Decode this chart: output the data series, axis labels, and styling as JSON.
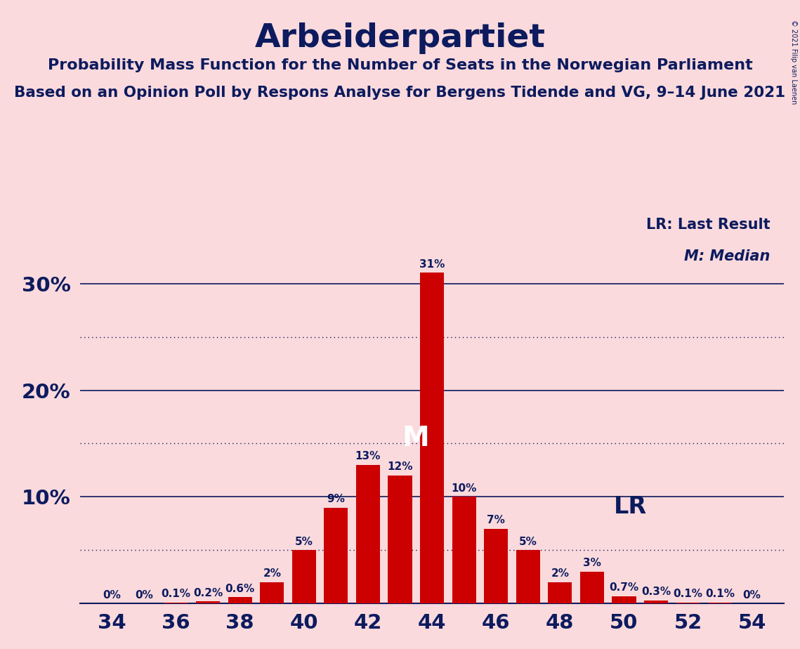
{
  "title": "Arbeiderpartiet",
  "subtitle1": "Probability Mass Function for the Number of Seats in the Norwegian Parliament",
  "subtitle2": "Based on an Opinion Poll by Respons Analyse for Bergens Tidende and VG, 9–14 June 2021",
  "copyright": "© 2021 Filip van Laenen",
  "seats": [
    34,
    35,
    36,
    37,
    38,
    39,
    40,
    41,
    42,
    43,
    44,
    45,
    46,
    47,
    48,
    49,
    50,
    51,
    52,
    53,
    54
  ],
  "values": [
    0.0,
    0.0,
    0.001,
    0.002,
    0.006,
    0.02,
    0.05,
    0.09,
    0.13,
    0.12,
    0.31,
    0.1,
    0.07,
    0.05,
    0.02,
    0.03,
    0.007,
    0.003,
    0.001,
    0.001,
    0.0
  ],
  "labels": [
    "0%",
    "0%",
    "0.1%",
    "0.2%",
    "0.6%",
    "2%",
    "5%",
    "9%",
    "13%",
    "12%",
    "31%",
    "10%",
    "7%",
    "5%",
    "2%",
    "3%",
    "0.7%",
    "0.3%",
    "0.1%",
    "0.1%",
    "0%"
  ],
  "bar_color": "#CC0000",
  "background_color": "#FADADD",
  "text_color": "#0D1B5E",
  "median_seat": 44,
  "lr_seat": 49,
  "solid_yticks": [
    0.1,
    0.2,
    0.3
  ],
  "dotted_yticks": [
    0.05,
    0.15,
    0.25
  ],
  "xticks": [
    34,
    36,
    38,
    40,
    42,
    44,
    46,
    48,
    50,
    52,
    54
  ],
  "ytick_positions": [
    0.1,
    0.2,
    0.3
  ],
  "ytick_labels": [
    "10%",
    "20%",
    "30%"
  ]
}
